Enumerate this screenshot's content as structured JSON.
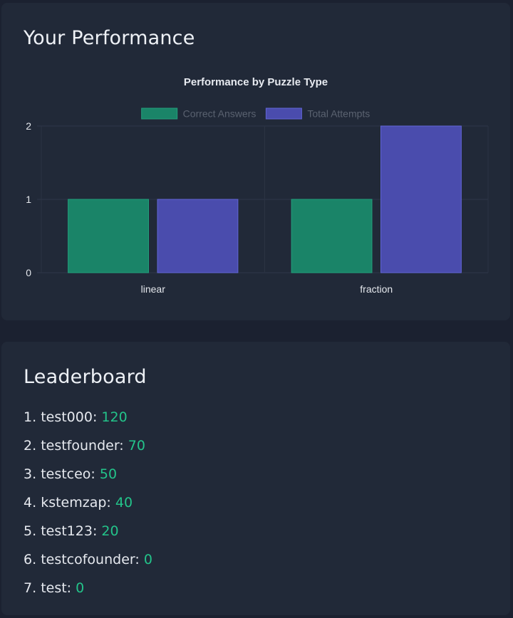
{
  "performance": {
    "title": "Your Performance"
  },
  "chart_data": {
    "type": "bar",
    "title": "Performance by Puzzle Type",
    "categories": [
      "linear",
      "fraction"
    ],
    "series": [
      {
        "name": "Correct Answers",
        "values": [
          1,
          1
        ],
        "color": "#1a8468",
        "border": "#23a07d"
      },
      {
        "name": "Total Attempts",
        "values": [
          1,
          2
        ],
        "color": "#4a4cad",
        "border": "#6266d6"
      }
    ],
    "ylim": [
      0,
      2
    ],
    "yticks": [
      0,
      1,
      2
    ],
    "grid": true,
    "legend": "top-center"
  },
  "leaderboard": {
    "title": "Leaderboard",
    "entries": [
      {
        "rank": "1.",
        "name": "test000:",
        "score": "120"
      },
      {
        "rank": "2.",
        "name": "testfounder:",
        "score": "70"
      },
      {
        "rank": "3.",
        "name": "testceo:",
        "score": "50"
      },
      {
        "rank": "4.",
        "name": "kstemzap:",
        "score": "40"
      },
      {
        "rank": "5.",
        "name": "test123:",
        "score": "20"
      },
      {
        "rank": "6.",
        "name": "testcofounder:",
        "score": "0"
      },
      {
        "rank": "7.",
        "name": "test:",
        "score": "0"
      }
    ],
    "score_color": "#23c48a"
  }
}
